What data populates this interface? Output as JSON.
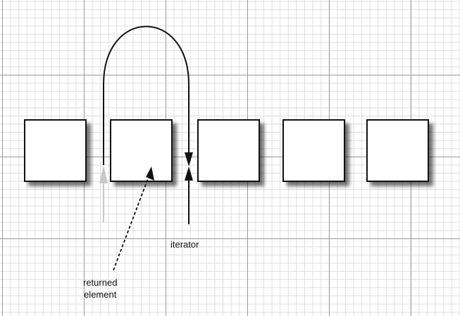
{
  "diagram": {
    "element_count": 5,
    "labels": {
      "iterator": "iterator",
      "returned_element": "returned\nelement"
    },
    "colors": {
      "grid_major": "#9c9c9c",
      "grid_minor": "#dedede",
      "box_border": "#111111",
      "arrow": "#111111",
      "ghost_arrow": "#c8c8c8"
    }
  }
}
